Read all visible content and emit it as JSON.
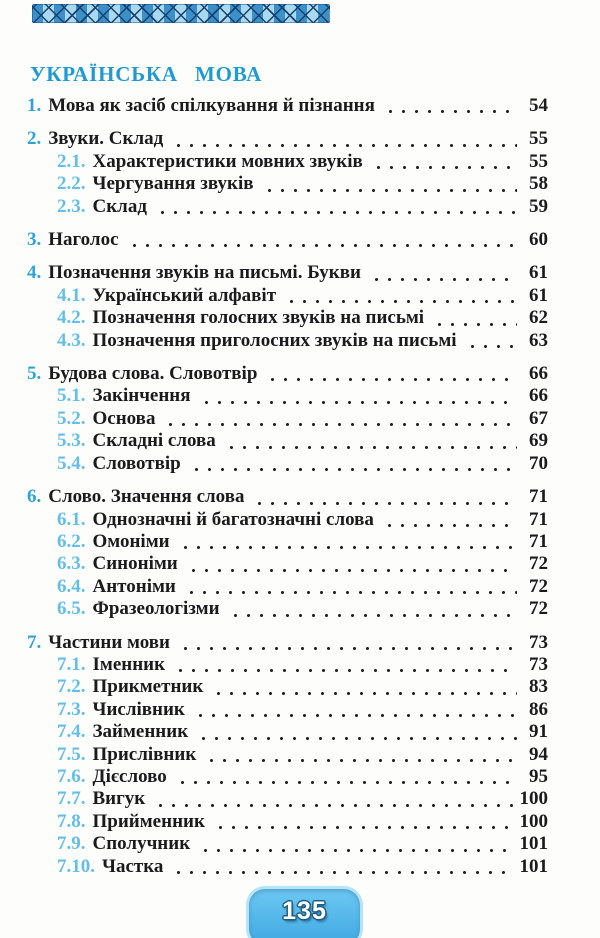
{
  "page": {
    "heading": "УКРАЇНСЬКА МОВА",
    "footer_page_number": "135"
  },
  "colors": {
    "heading": "#1f9ad2",
    "num1": "#2fa3d8",
    "num2": "#63bee8",
    "text": "#1b1b1b",
    "badge_top": "#6cc8f2",
    "badge_bottom": "#3fa8e2",
    "badge_glow": "#b5e4f8",
    "badge_stroke": "#1d5d85",
    "ribbon_dark": "#3b90c8",
    "ribbon_light": "#a9d9ef",
    "ribbon_line": "#17406e"
  },
  "toc": {
    "sections": [
      {
        "entries": [
          {
            "num": "1.",
            "title": "Мова як засіб спілкування й пізнання",
            "page": "54",
            "level": 1
          }
        ]
      },
      {
        "entries": [
          {
            "num": "2.",
            "title": "Звуки. Склад",
            "page": "55",
            "level": 1
          },
          {
            "num": "2.1.",
            "title": "Характеристики мовних звуків",
            "page": "55",
            "level": 2
          },
          {
            "num": "2.2.",
            "title": "Чергування звуків",
            "page": "58",
            "level": 2
          },
          {
            "num": "2.3.",
            "title": "Склад",
            "page": "59",
            "level": 2
          }
        ]
      },
      {
        "entries": [
          {
            "num": "3.",
            "title": "Наголос",
            "page": "60",
            "level": 1
          }
        ]
      },
      {
        "entries": [
          {
            "num": "4.",
            "title": "Позначення звуків на письмі. Букви",
            "page": "61",
            "level": 1
          },
          {
            "num": "4.1.",
            "title": "Український алфавіт",
            "page": "61",
            "level": 2
          },
          {
            "num": "4.2.",
            "title": "Позначення голосних звуків на письмі",
            "page": "62",
            "level": 2
          },
          {
            "num": "4.3.",
            "title": "Позначення приголосних звуків на письмі",
            "page": "63",
            "level": 2
          }
        ]
      },
      {
        "entries": [
          {
            "num": "5.",
            "title": "Будова слова. Словотвір",
            "page": "66",
            "level": 1
          },
          {
            "num": "5.1.",
            "title": "Закінчення",
            "page": "66",
            "level": 2
          },
          {
            "num": "5.2.",
            "title": "Основа",
            "page": "67",
            "level": 2
          },
          {
            "num": "5.3.",
            "title": "Складні слова",
            "page": "69",
            "level": 2
          },
          {
            "num": "5.4.",
            "title": "Словотвір",
            "page": "70",
            "level": 2
          }
        ]
      },
      {
        "entries": [
          {
            "num": "6.",
            "title": "Слово. Значення слова",
            "page": "71",
            "level": 1
          },
          {
            "num": "6.1.",
            "title": "Однозначні й багатозначні слова",
            "page": "71",
            "level": 2
          },
          {
            "num": "6.2.",
            "title": "Омоніми",
            "page": "71",
            "level": 2
          },
          {
            "num": "6.3.",
            "title": "Синоніми",
            "page": "72",
            "level": 2
          },
          {
            "num": "6.4.",
            "title": "Антоніми",
            "page": "72",
            "level": 2
          },
          {
            "num": "6.5.",
            "title": "Фразеологізми",
            "page": "72",
            "level": 2
          }
        ]
      },
      {
        "entries": [
          {
            "num": "7.",
            "title": "Частини мови",
            "page": "73",
            "level": 1
          },
          {
            "num": "7.1.",
            "title": "Іменник",
            "page": "73",
            "level": 2
          },
          {
            "num": "7.2.",
            "title": "Прикметник",
            "page": "83",
            "level": 2
          },
          {
            "num": "7.3.",
            "title": "Числівник",
            "page": "86",
            "level": 2
          },
          {
            "num": "7.4.",
            "title": "Займенник",
            "page": "91",
            "level": 2
          },
          {
            "num": "7.5.",
            "title": "Прислівник",
            "page": "94",
            "level": 2
          },
          {
            "num": "7.6.",
            "title": "Дієслово",
            "page": "95",
            "level": 2
          },
          {
            "num": "7.7.",
            "title": "Вигук",
            "page": "100",
            "level": 2
          },
          {
            "num": "7.8.",
            "title": "Прийменник",
            "page": "100",
            "level": 2
          },
          {
            "num": "7.9.",
            "title": "Сполучник",
            "page": "101",
            "level": 2
          },
          {
            "num": "7.10.",
            "title": "Частка",
            "page": "101",
            "level": 2
          }
        ]
      }
    ]
  }
}
